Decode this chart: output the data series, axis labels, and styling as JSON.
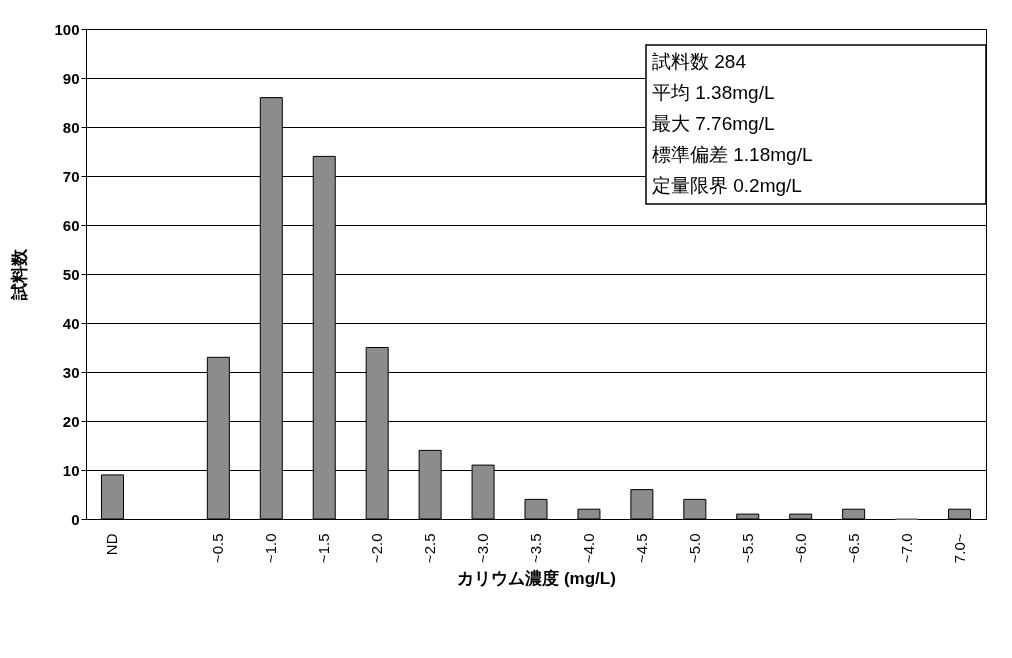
{
  "chart_data": {
    "type": "bar",
    "ylabel": "試料数",
    "xlabel": "カリウム濃度 (mg/L)",
    "categories": [
      "ND",
      null,
      "~0.5",
      "~1.0",
      "~1.5",
      "~2.0",
      "~2.5",
      "~3.0",
      "~3.5",
      "~4.0",
      "~4.5",
      "~5.0",
      "~5.5",
      "~6.0",
      "~6.5",
      "~7.0",
      "7.0~"
    ],
    "values": [
      9,
      null,
      33,
      86,
      74,
      35,
      14,
      11,
      4,
      2,
      6,
      4,
      1,
      1,
      2,
      0,
      2
    ],
    "color": "#8c8c8c",
    "ylim": [
      0,
      100
    ],
    "yticks": [
      0,
      10,
      20,
      30,
      40,
      50,
      60,
      70,
      80,
      90,
      100
    ],
    "grid": "y",
    "annotations": [
      "試料数  284",
      "平均  1.38mg/L",
      "最大  7.76mg/L",
      "標準偏差  1.18mg/L",
      "定量限界  0.2mg/L"
    ]
  }
}
